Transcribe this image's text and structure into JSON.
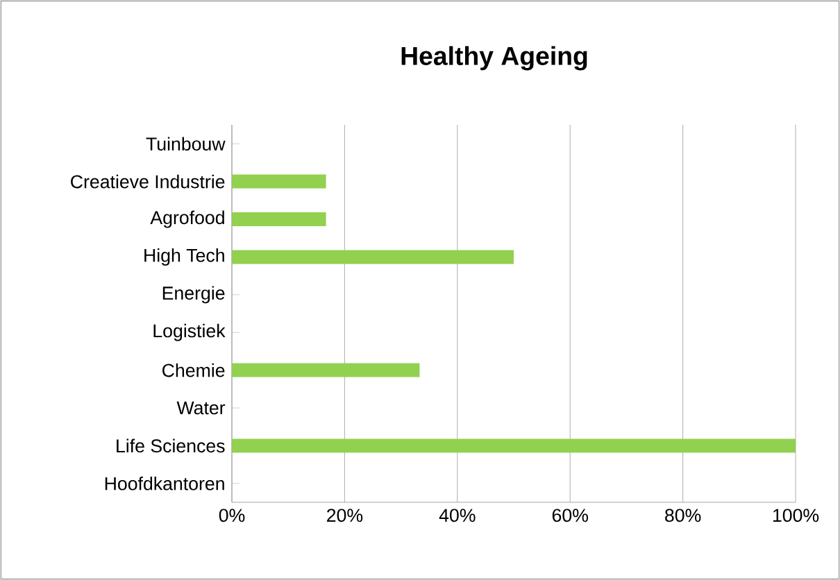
{
  "chart_data": {
    "type": "bar",
    "orientation": "horizontal",
    "title": "Healthy Ageing",
    "categories": [
      "Tuinbouw",
      "Creatieve Industrie",
      "Agrofood",
      "High Tech",
      "Energie",
      "Logistiek",
      "Chemie",
      "Water",
      "Life Sciences",
      "Hoofdkantoren"
    ],
    "values": [
      0,
      16.7,
      16.7,
      50,
      0,
      0,
      33.3,
      0,
      100,
      0
    ],
    "color": "#92d050",
    "xlim": [
      0,
      100
    ],
    "xticks": [
      {
        "value": 0,
        "label": "0%"
      },
      {
        "value": 20,
        "label": "20%"
      },
      {
        "value": 40,
        "label": "40%"
      },
      {
        "value": 60,
        "label": "60%"
      },
      {
        "value": 80,
        "label": "80%"
      },
      {
        "value": 100,
        "label": "100%"
      }
    ],
    "grid": "x"
  }
}
